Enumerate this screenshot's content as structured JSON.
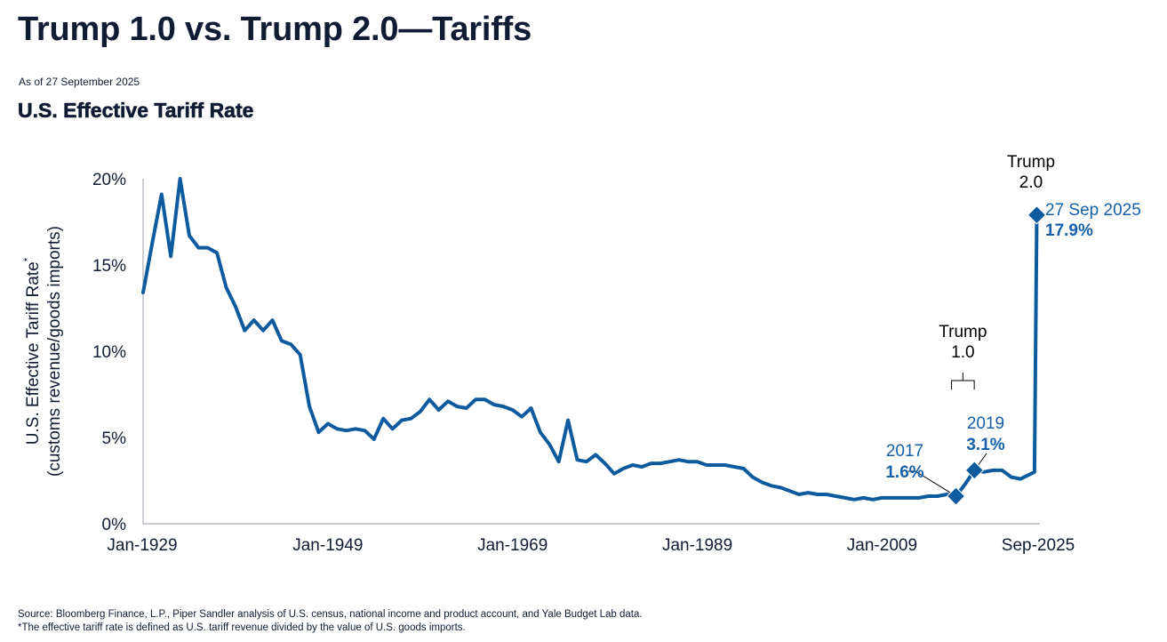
{
  "header": {
    "title": "Trump 1.0 vs. Trump 2.0—Tariffs",
    "as_of": "As of 27 September 2025",
    "subtitle": "U.S. Effective Tariff Rate"
  },
  "footnotes": {
    "source": "Source: Bloomberg Finance, L.P., Piper Sandler analysis of U.S. census, national income and product account, and Yale Budget Lab data.",
    "definition": "*The effective tariff rate is defined as U.S. tariff revenue divided by the value of U.S. goods imports."
  },
  "colors": {
    "line": "#0d5a9e",
    "annotation_blue": "#1560a8",
    "text": "#0f1c33",
    "axis": "#a8adb5"
  },
  "chart_data": {
    "type": "line",
    "title": "U.S. Effective Tariff Rate",
    "xlabel": "",
    "ylabel_line1": "U.S. Effective Tariff Rate*",
    "ylabel_line2": "(customs revenue/goods imports)",
    "ylim": [
      0,
      20
    ],
    "xlim": [
      1929,
      2025.75
    ],
    "grid": false,
    "y_ticks": [
      {
        "value": 0,
        "label": "0%"
      },
      {
        "value": 5,
        "label": "5%"
      },
      {
        "value": 10,
        "label": "10%"
      },
      {
        "value": 15,
        "label": "15%"
      },
      {
        "value": 20,
        "label": "20%"
      }
    ],
    "x_ticks": [
      {
        "value": 1929,
        "label": "Jan-1929"
      },
      {
        "value": 1949,
        "label": "Jan-1949"
      },
      {
        "value": 1969,
        "label": "Jan-1969"
      },
      {
        "value": 1989,
        "label": "Jan-1989"
      },
      {
        "value": 2009,
        "label": "Jan-2009"
      },
      {
        "value": 2025.75,
        "label": "Sep-2025"
      }
    ],
    "series": [
      {
        "name": "U.S. Effective Tariff Rate (%)",
        "x": [
          1929,
          1930,
          1931,
          1932,
          1933,
          1934,
          1935,
          1936,
          1937,
          1938,
          1939,
          1940,
          1941,
          1942,
          1943,
          1944,
          1945,
          1946,
          1947,
          1948,
          1949,
          1950,
          1951,
          1952,
          1953,
          1954,
          1955,
          1956,
          1957,
          1958,
          1959,
          1960,
          1961,
          1962,
          1963,
          1964,
          1965,
          1966,
          1967,
          1968,
          1969,
          1970,
          1971,
          1972,
          1973,
          1974,
          1975,
          1976,
          1977,
          1978,
          1979,
          1980,
          1981,
          1982,
          1983,
          1984,
          1985,
          1986,
          1987,
          1988,
          1989,
          1990,
          1991,
          1992,
          1993,
          1994,
          1995,
          1996,
          1997,
          1998,
          1999,
          2000,
          2001,
          2002,
          2003,
          2004,
          2005,
          2006,
          2007,
          2008,
          2009,
          2010,
          2011,
          2012,
          2013,
          2014,
          2015,
          2016,
          2017,
          2018,
          2019,
          2020,
          2021,
          2022,
          2023,
          2024,
          2025.5,
          2025.75
        ],
        "values": [
          13.4,
          16.3,
          19.1,
          15.5,
          20.0,
          16.7,
          16.0,
          16.0,
          15.7,
          13.7,
          12.6,
          11.2,
          11.8,
          11.2,
          11.8,
          10.6,
          10.4,
          9.8,
          6.8,
          5.3,
          5.8,
          5.5,
          5.4,
          5.5,
          5.4,
          4.9,
          6.1,
          5.5,
          6.0,
          6.1,
          6.5,
          7.2,
          6.6,
          7.1,
          6.8,
          6.7,
          7.2,
          7.2,
          6.9,
          6.8,
          6.6,
          6.2,
          6.7,
          5.3,
          4.6,
          3.6,
          6.0,
          3.7,
          3.6,
          4.0,
          3.5,
          2.9,
          3.2,
          3.4,
          3.3,
          3.5,
          3.5,
          3.6,
          3.7,
          3.6,
          3.6,
          3.4,
          3.4,
          3.4,
          3.3,
          3.2,
          2.7,
          2.4,
          2.2,
          2.1,
          1.9,
          1.7,
          1.8,
          1.7,
          1.7,
          1.6,
          1.5,
          1.4,
          1.5,
          1.4,
          1.5,
          1.5,
          1.5,
          1.5,
          1.5,
          1.6,
          1.6,
          1.7,
          1.6,
          2.3,
          3.1,
          3.0,
          3.1,
          3.1,
          2.7,
          2.6,
          3.0,
          17.9
        ]
      }
    ],
    "highlighted_points": [
      {
        "x": 2017,
        "value": 1.6,
        "label_year": "2017",
        "label_value": "1.6%"
      },
      {
        "x": 2019,
        "value": 3.1,
        "label_year": "2019",
        "label_value": "3.1%"
      },
      {
        "x": 2025.75,
        "value": 17.9,
        "label_year": "27 Sep 2025",
        "label_value": "17.9%"
      }
    ],
    "annotations": [
      {
        "id": "trump1",
        "line1": "Trump",
        "line2": "1.0",
        "x_start": 2017,
        "x_end": 2021
      },
      {
        "id": "trump2",
        "line1": "Trump",
        "line2": "2.0",
        "x": 2025.75
      }
    ]
  }
}
